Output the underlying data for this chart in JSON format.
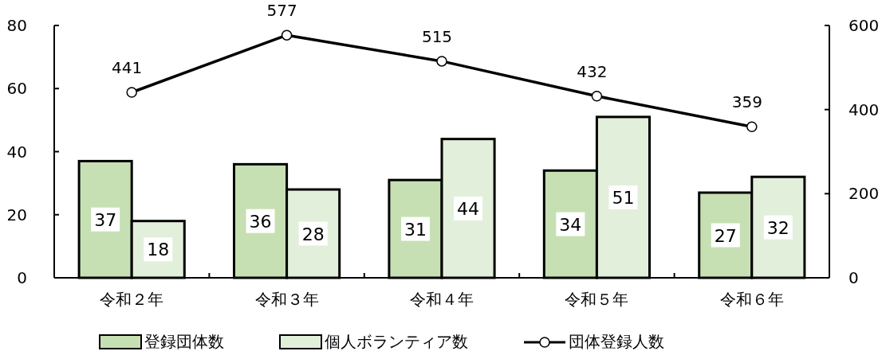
{
  "chart_data": {
    "type": "bar",
    "categories": [
      "令和２年",
      "令和３年",
      "令和４年",
      "令和５年",
      "令和６年"
    ],
    "series": [
      {
        "name": "登録団体数",
        "color": "#c6e0b4",
        "values": [
          37,
          36,
          31,
          34,
          27
        ]
      },
      {
        "name": "個人ボランティア数",
        "color": "#e2efda",
        "values": [
          18,
          28,
          44,
          51,
          32
        ]
      },
      {
        "name": "団体登録人数",
        "type": "line",
        "axis": "y2",
        "color": "#000000",
        "marker": "circle",
        "values": [
          441,
          577,
          515,
          432,
          359
        ]
      }
    ],
    "ylim": [
      0,
      80
    ],
    "yticks": [
      0,
      20,
      40,
      60,
      80
    ],
    "y2lim": [
      0,
      600
    ],
    "y2ticks": [
      0,
      200,
      400,
      600
    ],
    "data_labels": true,
    "legend": "bottom",
    "grid": false
  }
}
